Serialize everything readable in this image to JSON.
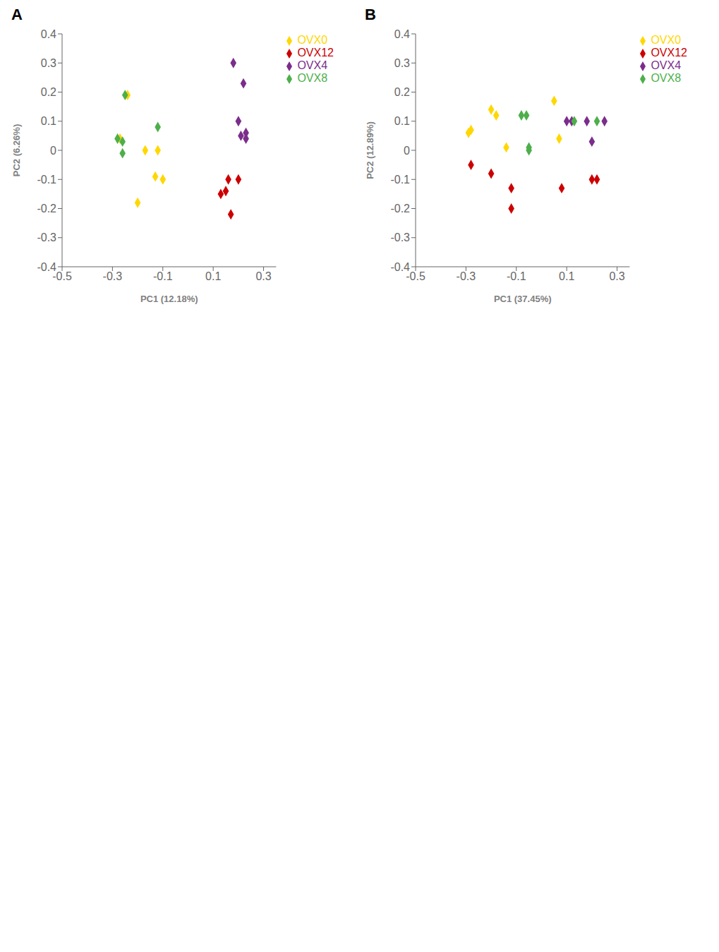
{
  "chart_data": [
    {
      "type": "scatter",
      "title": "A",
      "x_label": "PC1 (12.18%)",
      "y_label": "PC2 (6.26%)",
      "xlim": [
        -0.5,
        0.35
      ],
      "ylim": [
        -0.4,
        0.4
      ],
      "xticks": [
        -0.5,
        -0.3,
        -0.1,
        0.1,
        0.3
      ],
      "yticks": [
        -0.4,
        -0.3,
        -0.2,
        -0.1,
        0.0,
        0.1,
        0.2,
        0.3,
        0.4
      ],
      "marker": "diamond",
      "legend": "right",
      "grid": false,
      "series": [
        {
          "name": "OVX0",
          "color": "#FFD700",
          "values": [
            [
              -0.17,
              0.0
            ],
            [
              -0.12,
              0.0
            ],
            [
              -0.1,
              -0.1
            ],
            [
              -0.2,
              -0.18
            ],
            [
              -0.13,
              -0.09
            ],
            [
              -0.24,
              0.19
            ],
            [
              -0.27,
              0.04
            ]
          ]
        },
        {
          "name": "OVX4",
          "color": "#7B2D8B",
          "values": [
            [
              0.18,
              0.3
            ],
            [
              0.22,
              0.23
            ],
            [
              0.2,
              0.1
            ],
            [
              0.23,
              0.06
            ],
            [
              0.21,
              0.05
            ],
            [
              0.23,
              0.04
            ]
          ]
        },
        {
          "name": "OVX8",
          "color": "#4DAF4A",
          "values": [
            [
              -0.25,
              0.19
            ],
            [
              -0.28,
              0.04
            ],
            [
              -0.26,
              0.03
            ],
            [
              -0.26,
              -0.01
            ],
            [
              -0.12,
              0.08
            ]
          ]
        },
        {
          "name": "OVX12",
          "color": "#CC0000",
          "values": [
            [
              0.16,
              -0.1
            ],
            [
              0.15,
              -0.14
            ],
            [
              0.17,
              -0.22
            ],
            [
              0.13,
              -0.15
            ],
            [
              0.2,
              -0.1
            ]
          ]
        }
      ]
    },
    {
      "type": "scatter",
      "title": "B",
      "x_label": "PC1 (37.45%)",
      "y_label": "PC2 (12.89%)",
      "xlim": [
        -0.5,
        0.35
      ],
      "ylim": [
        -0.4,
        0.4
      ],
      "xticks": [
        -0.5,
        -0.3,
        -0.1,
        0.1,
        0.3
      ],
      "yticks": [
        -0.4,
        -0.3,
        -0.2,
        -0.1,
        0.0,
        0.1,
        0.2,
        0.3,
        0.4
      ],
      "marker": "diamond",
      "legend": "right",
      "grid": false,
      "series": [
        {
          "name": "OVX0",
          "color": "#FFD700",
          "values": [
            [
              -0.28,
              0.07
            ],
            [
              -0.29,
              0.06
            ],
            [
              -0.2,
              0.14
            ],
            [
              -0.18,
              0.12
            ],
            [
              -0.14,
              0.01
            ],
            [
              0.05,
              0.17
            ],
            [
              0.07,
              0.04
            ]
          ]
        },
        {
          "name": "OVX4",
          "color": "#7B2D8B",
          "values": [
            [
              0.1,
              0.1
            ],
            [
              0.12,
              0.1
            ],
            [
              0.2,
              0.03
            ],
            [
              0.25,
              0.1
            ],
            [
              0.18,
              0.1
            ]
          ]
        },
        {
          "name": "OVX8",
          "color": "#4DAF4A",
          "values": [
            [
              -0.08,
              0.12
            ],
            [
              -0.06,
              0.12
            ],
            [
              -0.05,
              0.01
            ],
            [
              -0.05,
              0.0
            ],
            [
              0.13,
              0.1
            ],
            [
              0.22,
              0.1
            ]
          ]
        },
        {
          "name": "OVX12",
          "color": "#CC0000",
          "values": [
            [
              -0.28,
              -0.05
            ],
            [
              -0.2,
              -0.08
            ],
            [
              -0.12,
              -0.13
            ],
            [
              -0.12,
              -0.2
            ],
            [
              0.08,
              -0.13
            ],
            [
              0.2,
              -0.1
            ],
            [
              0.22,
              -0.1
            ]
          ]
        }
      ]
    }
  ]
}
